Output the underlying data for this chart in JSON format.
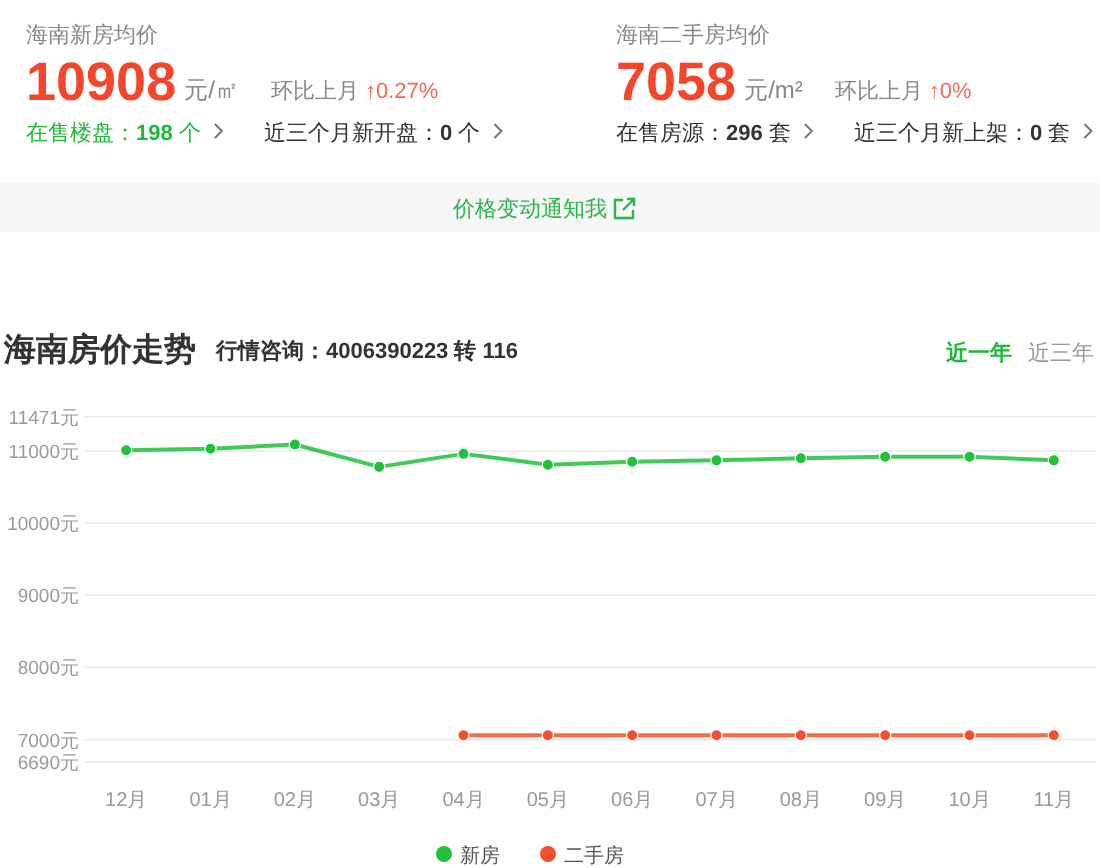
{
  "chart_data": [
    {
      "type": "other",
      "annotations": [
        "海南新房均价",
        "10908",
        "元/㎡",
        "环比上月",
        "↑0.27%",
        "在售楼盘：198 个",
        "近三个月新开盘：0 个"
      ]
    },
    {
      "type": "other",
      "annotations": [
        "海南二手房均价",
        "7058",
        "元/m²",
        "环比上月",
        "↑0%",
        "在售房源：296 套",
        "近三个月新上架：0 套"
      ]
    },
    {
      "type": "other",
      "annotations": [
        "价格变动通知我"
      ]
    },
    {
      "type": "line",
      "title": "海南房价走势",
      "subtitle": "行情咨询：4006390223 转 116",
      "annotations": [
        "近一年",
        "近三年"
      ],
      "categories": [
        "12月",
        "01月",
        "02月",
        "03月",
        "04月",
        "05月",
        "06月",
        "07月",
        "08月",
        "09月",
        "10月",
        "11月"
      ],
      "series": [
        {
          "name": "新房",
          "color": "#1ec23b",
          "values": [
            11010,
            11030,
            11090,
            10780,
            10960,
            10810,
            10850,
            10870,
            10900,
            10920,
            10920,
            10870
          ]
        },
        {
          "name": "二手房",
          "color": "#f4502f",
          "values": [
            null,
            null,
            null,
            null,
            7060,
            7060,
            7060,
            7060,
            7060,
            7060,
            7060,
            7060
          ]
        }
      ],
      "ylim": [
        6690,
        11471
      ],
      "yticks": [
        {
          "value": 6690,
          "label": "6690元"
        },
        {
          "value": 7000,
          "label": "7000元"
        },
        {
          "value": 8000,
          "label": "8000元"
        },
        {
          "value": 9000,
          "label": "9000元"
        },
        {
          "value": 10000,
          "label": "10000元"
        },
        {
          "value": 11000,
          "label": "11000元"
        },
        {
          "value": 11471,
          "label": "11471元"
        }
      ],
      "grid": "y",
      "legend": "bottom",
      "marker": "circle"
    }
  ]
}
